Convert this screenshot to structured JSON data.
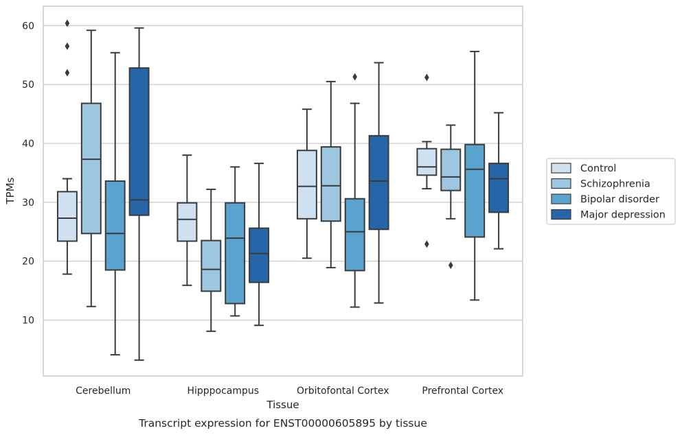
{
  "chart_data": {
    "type": "boxplot",
    "title": "",
    "caption": "Transcript expression for ENST00000605895 by tissue",
    "xlabel": "Tissue",
    "ylabel": "TPMs",
    "ylim": [
      0.5,
      63.3
    ],
    "yticks": [
      10,
      20,
      30,
      40,
      50,
      60
    ],
    "grid": "horizontal",
    "legend_position": "right",
    "categories": [
      "Cerebellum",
      "Hipppocampus",
      "Orbitofontal Cortex",
      "Prefrontal Cortex"
    ],
    "series": [
      {
        "name": "Control",
        "color": "#cfe0f1",
        "boxes": [
          {
            "whislo": 17.8,
            "q1": 23.4,
            "med": 27.3,
            "q3": 31.8,
            "whishi": 34.0,
            "fliers": [
              60.4,
              56.5,
              52.0
            ]
          },
          {
            "whislo": 15.9,
            "q1": 23.4,
            "med": 27.1,
            "q3": 29.9,
            "whishi": 38.0,
            "fliers": []
          },
          {
            "whislo": 20.5,
            "q1": 27.2,
            "med": 32.7,
            "q3": 38.8,
            "whishi": 45.8,
            "fliers": []
          },
          {
            "whislo": 32.3,
            "q1": 34.6,
            "med": 36.0,
            "q3": 39.1,
            "whishi": 40.3,
            "fliers": [
              51.2,
              22.9
            ]
          }
        ]
      },
      {
        "name": "Schizophrenia",
        "color": "#9dc6e0",
        "boxes": [
          {
            "whislo": 12.3,
            "q1": 24.7,
            "med": 37.3,
            "q3": 46.8,
            "whishi": 59.2,
            "fliers": []
          },
          {
            "whislo": 8.1,
            "q1": 14.9,
            "med": 18.6,
            "q3": 23.5,
            "whishi": 32.2,
            "fliers": []
          },
          {
            "whislo": 18.9,
            "q1": 26.8,
            "med": 32.8,
            "q3": 39.4,
            "whishi": 50.5,
            "fliers": []
          },
          {
            "whislo": 27.2,
            "q1": 32.0,
            "med": 34.3,
            "q3": 39.0,
            "whishi": 43.1,
            "fliers": [
              19.3
            ]
          }
        ]
      },
      {
        "name": "Bipolar disorder",
        "color": "#5ba3cf",
        "boxes": [
          {
            "whislo": 4.1,
            "q1": 18.5,
            "med": 24.7,
            "q3": 33.6,
            "whishi": 55.4,
            "fliers": []
          },
          {
            "whislo": 10.7,
            "q1": 12.8,
            "med": 23.9,
            "q3": 29.9,
            "whishi": 36.0,
            "fliers": []
          },
          {
            "whislo": 12.2,
            "q1": 18.4,
            "med": 25.0,
            "q3": 30.6,
            "whishi": 46.8,
            "fliers": [
              51.3
            ]
          },
          {
            "whislo": 13.4,
            "q1": 24.1,
            "med": 35.6,
            "q3": 39.8,
            "whishi": 55.6,
            "fliers": []
          }
        ]
      },
      {
        "name": "Major depression",
        "color": "#2666a8",
        "boxes": [
          {
            "whislo": 3.2,
            "q1": 27.8,
            "med": 30.4,
            "q3": 52.8,
            "whishi": 59.6,
            "fliers": []
          },
          {
            "whislo": 9.1,
            "q1": 16.4,
            "med": 21.3,
            "q3": 25.6,
            "whishi": 36.6,
            "fliers": []
          },
          {
            "whislo": 12.9,
            "q1": 25.4,
            "med": 33.6,
            "q3": 41.3,
            "whishi": 53.7,
            "fliers": []
          },
          {
            "whislo": 22.1,
            "q1": 28.3,
            "med": 34.0,
            "q3": 36.6,
            "whishi": 45.2,
            "fliers": []
          }
        ]
      }
    ]
  }
}
